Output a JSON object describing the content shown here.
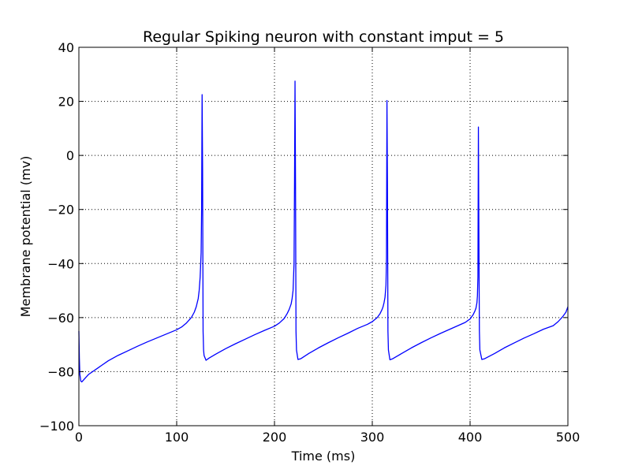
{
  "chart_data": {
    "type": "line",
    "title": "Regular Spiking neuron with constant imput = 5",
    "xlabel": "Time (ms)",
    "ylabel": "Membrane potential (mv)",
    "xlim": [
      0,
      500
    ],
    "ylim": [
      -100,
      40
    ],
    "xticks": [
      0,
      100,
      200,
      300,
      400,
      500
    ],
    "xtick_labels": [
      "0",
      "100",
      "200",
      "300",
      "400",
      "500"
    ],
    "yticks": [
      -100,
      -80,
      -60,
      -40,
      -20,
      0,
      20,
      40
    ],
    "ytick_labels": [
      "−100",
      "−80",
      "−60",
      "−40",
      "−20",
      "0",
      "20",
      "40"
    ],
    "grid": true,
    "line_color": "#0000ff",
    "series": [
      {
        "x": [
          0,
          0.5,
          1,
          2,
          3,
          5,
          10,
          20,
          30,
          40,
          50,
          60,
          70,
          80,
          90,
          100,
          105,
          110,
          115,
          118,
          120,
          122,
          123,
          124,
          125,
          125.5,
          126,
          126.5,
          127,
          127.5,
          128,
          130,
          133,
          140,
          150,
          160,
          170,
          180,
          190,
          200,
          205,
          210,
          213,
          215,
          217,
          218,
          219,
          220,
          220.5,
          221,
          221.5,
          222,
          222.5,
          224,
          227,
          235,
          245,
          255,
          265,
          275,
          285,
          295,
          300,
          305,
          308,
          310,
          311,
          312,
          313,
          314,
          314.5,
          315,
          315.5,
          316,
          316.5,
          318,
          321,
          330,
          340,
          350,
          360,
          370,
          380,
          390,
          395,
          400,
          403,
          405,
          406,
          407,
          407.5,
          408,
          408.5,
          409,
          409.5,
          410,
          412,
          415,
          425,
          435,
          445,
          455,
          465,
          475,
          485,
          490,
          495,
          498,
          500
        ],
        "y": [
          -65,
          -75,
          -81,
          -83.5,
          -83.8,
          -83,
          -81,
          -78.5,
          -76,
          -74,
          -72.3,
          -70.6,
          -69,
          -67.5,
          -66,
          -64.5,
          -63.5,
          -62,
          -60,
          -58,
          -56,
          -53,
          -50,
          -45,
          -36,
          -20,
          22.5,
          -5,
          -65,
          -72,
          -74,
          -75.8,
          -75,
          -73.5,
          -71.5,
          -69.7,
          -68,
          -66.3,
          -64.7,
          -63.2,
          -62,
          -60.3,
          -58.5,
          -57,
          -55,
          -53,
          -50,
          -40,
          -10,
          27.5,
          -10,
          -65,
          -72,
          -75.5,
          -75.2,
          -73.3,
          -71.2,
          -69.3,
          -67.5,
          -65.8,
          -64,
          -62.5,
          -61.5,
          -60,
          -58.5,
          -57,
          -56,
          -54.5,
          -52.5,
          -48,
          -38,
          20.3,
          -10,
          -65,
          -72,
          -75.6,
          -75.2,
          -73.3,
          -71.2,
          -69.3,
          -67.5,
          -65.8,
          -64.2,
          -62.6,
          -61.8,
          -60.5,
          -59,
          -57.5,
          -56.5,
          -54.5,
          -52,
          -45,
          10.5,
          -30,
          -65,
          -72,
          -75.5,
          -75.2,
          -73.3,
          -71.2,
          -69.4,
          -67.6,
          -66,
          -64.3,
          -63,
          -61.5,
          -59.5,
          -58,
          -56
        ]
      }
    ]
  }
}
